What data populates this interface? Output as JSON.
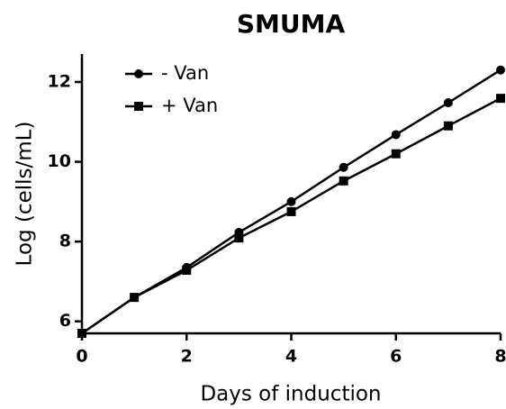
{
  "chart_data": {
    "type": "line",
    "title": "SMUMA",
    "x_label": "Days of induction",
    "y_label": "Log (cells/mL)",
    "x": [
      0,
      1,
      2,
      3,
      4,
      5,
      6,
      7,
      8
    ],
    "series": [
      {
        "name": "- Van",
        "color": "#000000",
        "marker": "circle",
        "values": [
          5.7,
          6.6,
          7.35,
          8.23,
          9.0,
          9.86,
          10.68,
          11.48,
          12.3
        ]
      },
      {
        "name": "+ Van",
        "color": "#000000",
        "marker": "square",
        "values": [
          5.7,
          6.6,
          7.28,
          8.09,
          8.75,
          9.52,
          10.2,
          10.9,
          11.59
        ]
      }
    ],
    "xlim": [
      0,
      8
    ],
    "xticks": [
      0,
      2,
      4,
      6,
      8
    ],
    "ylim": [
      5.7,
      12.7
    ],
    "yticks": [
      6,
      8,
      10,
      12
    ],
    "legend": "upper left",
    "grid": false
  }
}
